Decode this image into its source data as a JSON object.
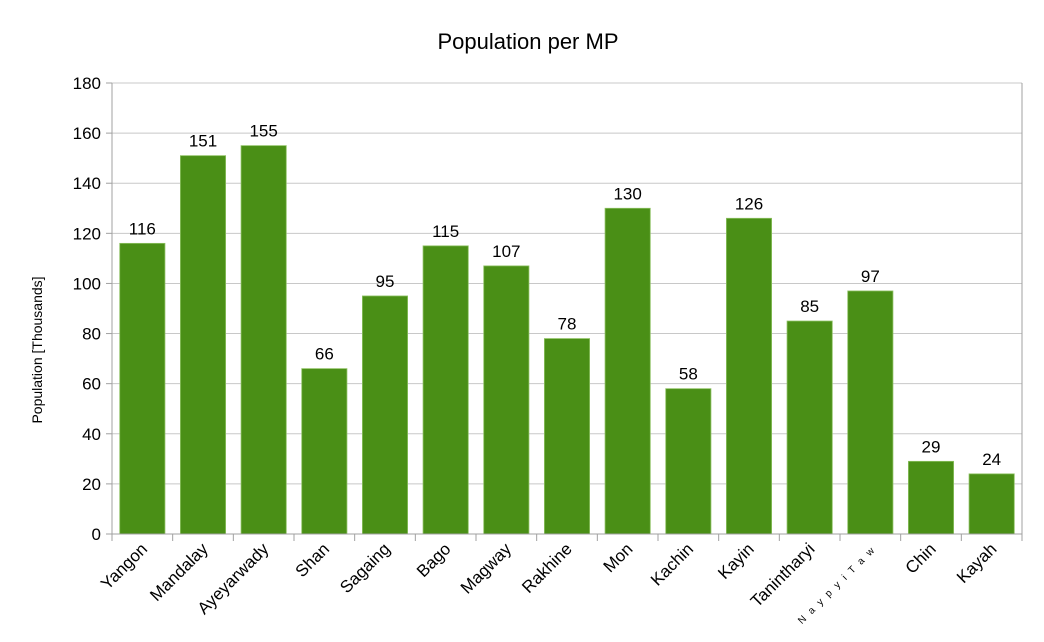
{
  "chart_data": {
    "type": "bar",
    "title": "Population per MP",
    "xlabel": "",
    "ylabel": "Population [Thousands]",
    "ylim": [
      0,
      180
    ],
    "yticks": [
      0,
      20,
      40,
      60,
      80,
      100,
      120,
      140,
      160,
      180
    ],
    "grid": true,
    "legend": "none",
    "bar_color": "#4a8f16",
    "categories": [
      "Yangon",
      "Mandalay",
      "Ayeyarwady",
      "Shan",
      "Sagaing",
      "Bago",
      "Magway",
      "Rakhine",
      "Mon",
      "Kachin",
      "Kayin",
      "Tanintharyi",
      "N a y p y i T a w",
      "Chin",
      "Kayah"
    ],
    "values": [
      116,
      151,
      155,
      66,
      95,
      115,
      107,
      78,
      130,
      58,
      126,
      85,
      97,
      29,
      24
    ],
    "data_labels": [
      "116",
      "151",
      "155",
      "66",
      "95",
      "115",
      "107",
      "78",
      "130",
      "58",
      "126",
      "85",
      "97",
      "29",
      "24"
    ]
  }
}
